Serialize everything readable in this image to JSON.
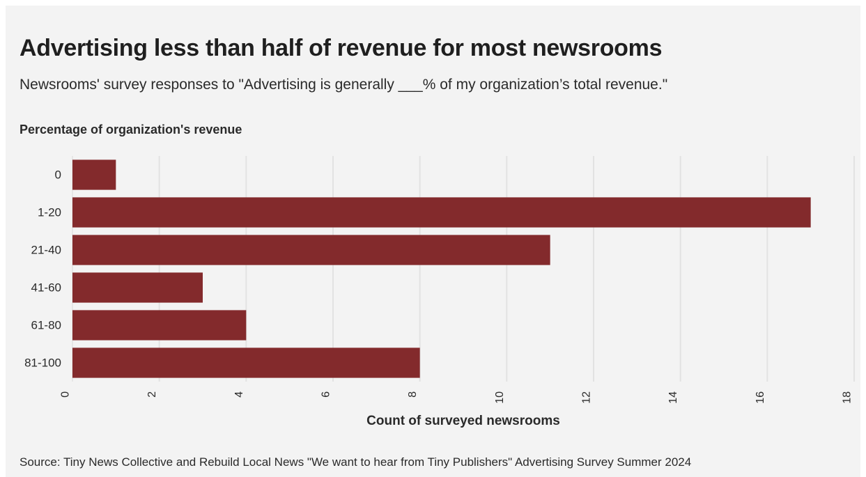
{
  "title": "Advertising less than half of revenue for most newsrooms",
  "subtitle": "Newsrooms' survey responses to \"Advertising is generally ___% of my organization’s total revenue.\"",
  "source": "Source: Tiny News Collective and Rebuild Local News \"We want to hear from Tiny Publishers\" Advertising Survey Summer 2024",
  "colors": {
    "bar": "#832a2c",
    "background": "#f3f3f3",
    "grid": "#e2e2e2"
  },
  "chart_data": {
    "type": "bar",
    "orientation": "horizontal",
    "ylabel": "Percentage of organization's revenue",
    "xlabel": "Count of surveyed newsrooms",
    "categories": [
      "0",
      "1-20",
      "21-40",
      "41-60",
      "61-80",
      "81-100"
    ],
    "values": [
      1,
      17,
      11,
      3,
      4,
      8
    ],
    "xlim": [
      0,
      18
    ],
    "xticks": [
      0,
      2,
      4,
      6,
      8,
      10,
      12,
      14,
      16,
      18
    ],
    "grid": true,
    "legend": "none"
  }
}
